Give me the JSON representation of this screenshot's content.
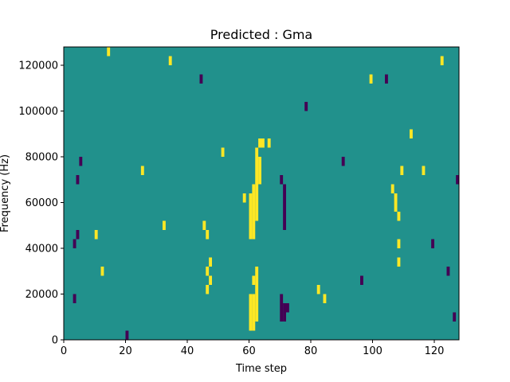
{
  "chart_data": {
    "type": "heatmap",
    "title": "Predicted : Gma",
    "xlabel": "Time step",
    "ylabel": "Frequency (Hz)",
    "xlim": [
      0,
      128
    ],
    "ylim": [
      0,
      128000
    ],
    "xticks": [
      0,
      20,
      40,
      60,
      80,
      100,
      120
    ],
    "yticks": [
      0,
      20000,
      40000,
      60000,
      80000,
      100000,
      120000
    ],
    "xtick_labels": [
      "0",
      "20",
      "40",
      "60",
      "80",
      "100",
      "120"
    ],
    "ytick_labels": [
      "0",
      "20000",
      "40000",
      "60000",
      "80000",
      "100000",
      "120000"
    ],
    "grid": false,
    "value_levels": [
      0,
      1,
      2
    ],
    "colormap": [
      "#440154",
      "#21918c",
      "#fde725"
    ],
    "background_value": 1,
    "cell_size": {
      "time_steps": 1,
      "frequency_hz": 4000
    },
    "cells": [
      {
        "t": 60,
        "f": 4000,
        "v": 2
      },
      {
        "t": 60,
        "f": 8000,
        "v": 2
      },
      {
        "t": 60,
        "f": 12000,
        "v": 2
      },
      {
        "t": 60,
        "f": 16000,
        "v": 2
      },
      {
        "t": 61,
        "f": 4000,
        "v": 2
      },
      {
        "t": 61,
        "f": 8000,
        "v": 2
      },
      {
        "t": 61,
        "f": 12000,
        "v": 2
      },
      {
        "t": 61,
        "f": 16000,
        "v": 2
      },
      {
        "t": 62,
        "f": 8000,
        "v": 2
      },
      {
        "t": 62,
        "f": 12000,
        "v": 2
      },
      {
        "t": 62,
        "f": 16000,
        "v": 2
      },
      {
        "t": 62,
        "f": 20000,
        "v": 2
      },
      {
        "t": 61,
        "f": 24000,
        "v": 2
      },
      {
        "t": 62,
        "f": 24000,
        "v": 2
      },
      {
        "t": 62,
        "f": 28000,
        "v": 2
      },
      {
        "t": 60,
        "f": 44000,
        "v": 2
      },
      {
        "t": 61,
        "f": 44000,
        "v": 2
      },
      {
        "t": 60,
        "f": 48000,
        "v": 2
      },
      {
        "t": 61,
        "f": 48000,
        "v": 2
      },
      {
        "t": 60,
        "f": 52000,
        "v": 2
      },
      {
        "t": 61,
        "f": 52000,
        "v": 2
      },
      {
        "t": 62,
        "f": 52000,
        "v": 2
      },
      {
        "t": 60,
        "f": 56000,
        "v": 2
      },
      {
        "t": 61,
        "f": 56000,
        "v": 2
      },
      {
        "t": 62,
        "f": 56000,
        "v": 2
      },
      {
        "t": 60,
        "f": 60000,
        "v": 2
      },
      {
        "t": 61,
        "f": 60000,
        "v": 2
      },
      {
        "t": 62,
        "f": 60000,
        "v": 2
      },
      {
        "t": 61,
        "f": 64000,
        "v": 2
      },
      {
        "t": 62,
        "f": 64000,
        "v": 2
      },
      {
        "t": 62,
        "f": 68000,
        "v": 2
      },
      {
        "t": 63,
        "f": 68000,
        "v": 2
      },
      {
        "t": 62,
        "f": 72000,
        "v": 2
      },
      {
        "t": 63,
        "f": 72000,
        "v": 2
      },
      {
        "t": 62,
        "f": 76000,
        "v": 2
      },
      {
        "t": 63,
        "f": 76000,
        "v": 2
      },
      {
        "t": 62,
        "f": 80000,
        "v": 2
      },
      {
        "t": 63,
        "f": 84000,
        "v": 2
      },
      {
        "t": 64,
        "f": 84000,
        "v": 2
      },
      {
        "t": 70,
        "f": 8000,
        "v": 0
      },
      {
        "t": 71,
        "f": 8000,
        "v": 0
      },
      {
        "t": 70,
        "f": 12000,
        "v": 0
      },
      {
        "t": 71,
        "f": 12000,
        "v": 0
      },
      {
        "t": 70,
        "f": 16000,
        "v": 0
      },
      {
        "t": 72,
        "f": 12000,
        "v": 0
      },
      {
        "t": 71,
        "f": 48000,
        "v": 0
      },
      {
        "t": 71,
        "f": 52000,
        "v": 0
      },
      {
        "t": 71,
        "f": 56000,
        "v": 0
      },
      {
        "t": 71,
        "f": 60000,
        "v": 0
      },
      {
        "t": 71,
        "f": 64000,
        "v": 0
      },
      {
        "t": 70,
        "f": 68000,
        "v": 0
      },
      {
        "t": 46,
        "f": 20000,
        "v": 2
      },
      {
        "t": 47,
        "f": 24000,
        "v": 2
      },
      {
        "t": 46,
        "f": 28000,
        "v": 2
      },
      {
        "t": 47,
        "f": 32000,
        "v": 2
      },
      {
        "t": 46,
        "f": 44000,
        "v": 2
      },
      {
        "t": 45,
        "f": 48000,
        "v": 2
      },
      {
        "t": 106,
        "f": 64000,
        "v": 2
      },
      {
        "t": 107,
        "f": 60000,
        "v": 2
      },
      {
        "t": 107,
        "f": 56000,
        "v": 2
      },
      {
        "t": 108,
        "f": 52000,
        "v": 2
      },
      {
        "t": 108,
        "f": 40000,
        "v": 2
      },
      {
        "t": 108,
        "f": 32000,
        "v": 2
      },
      {
        "t": 109,
        "f": 72000,
        "v": 2
      },
      {
        "t": 3,
        "f": 16000,
        "v": 0
      },
      {
        "t": 3,
        "f": 40000,
        "v": 0
      },
      {
        "t": 4,
        "f": 44000,
        "v": 0
      },
      {
        "t": 5,
        "f": 76000,
        "v": 0
      },
      {
        "t": 4,
        "f": 68000,
        "v": 0
      },
      {
        "t": 10,
        "f": 44000,
        "v": 2
      },
      {
        "t": 12,
        "f": 28000,
        "v": 2
      },
      {
        "t": 14,
        "f": 124000,
        "v": 2
      },
      {
        "t": 20,
        "f": 0,
        "v": 0
      },
      {
        "t": 25,
        "f": 72000,
        "v": 2
      },
      {
        "t": 32,
        "f": 48000,
        "v": 2
      },
      {
        "t": 34,
        "f": 120000,
        "v": 2
      },
      {
        "t": 44,
        "f": 112000,
        "v": 0
      },
      {
        "t": 51,
        "f": 80000,
        "v": 2
      },
      {
        "t": 58,
        "f": 60000,
        "v": 2
      },
      {
        "t": 66,
        "f": 84000,
        "v": 2
      },
      {
        "t": 78,
        "f": 100000,
        "v": 0
      },
      {
        "t": 82,
        "f": 20000,
        "v": 2
      },
      {
        "t": 84,
        "f": 16000,
        "v": 2
      },
      {
        "t": 90,
        "f": 76000,
        "v": 0
      },
      {
        "t": 96,
        "f": 24000,
        "v": 0
      },
      {
        "t": 99,
        "f": 112000,
        "v": 2
      },
      {
        "t": 104,
        "f": 112000,
        "v": 0
      },
      {
        "t": 112,
        "f": 88000,
        "v": 2
      },
      {
        "t": 116,
        "f": 72000,
        "v": 2
      },
      {
        "t": 119,
        "f": 40000,
        "v": 0
      },
      {
        "t": 124,
        "f": 28000,
        "v": 0
      },
      {
        "t": 126,
        "f": 8000,
        "v": 0
      },
      {
        "t": 127,
        "f": 68000,
        "v": 0
      },
      {
        "t": 122,
        "f": 120000,
        "v": 2
      }
    ]
  }
}
